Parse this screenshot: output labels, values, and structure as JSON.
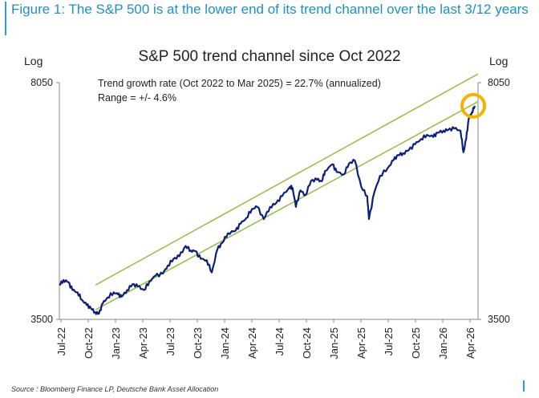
{
  "figure": {
    "title": "Figure 1: The S&P 500 is at the lower end of its trend channel over the last 3/12 years",
    "source": "Source : Bloomberg Finance LP, Deutsche Bank Asset Allocation"
  },
  "colors": {
    "figure_title": "#1f8fc7",
    "series_line": "#0d1f7a",
    "channel": "#9bbf4a",
    "highlight": "#f2b400",
    "axis": "#888888"
  },
  "chart_data": {
    "type": "line",
    "title": "S&P 500 trend channel since Oct 2022",
    "y_scale": "log",
    "ylim": [
      3500,
      8050
    ],
    "y_ticks": [
      3500,
      8050
    ],
    "y_unit_left": "Log",
    "y_unit_right": "Log",
    "x_tick_labels": [
      "Jul-22",
      "Oct-22",
      "Jan-23",
      "Apr-23",
      "Jul-23",
      "Oct-23",
      "Jan-24",
      "Apr-24",
      "Jul-24",
      "Oct-24",
      "Jan-25",
      "Apr-25",
      "Jul-25",
      "Oct-25",
      "Jan-26",
      "Apr-26"
    ],
    "xlim": [
      "2022-06-01",
      "2026-04-10"
    ],
    "annotations": [
      "Trend growth rate (Oct 2022 to Mar 2025) = 22.7% (annualized)",
      "Range = +/- 4.6%"
    ],
    "trend_growth_rate_annualized_pct": 22.7,
    "range_pct": 4.6,
    "channel_lines": [
      {
        "x": [
          "2022-10-01",
          "2026-04-10"
        ],
        "y": [
          3950,
          8300
        ]
      },
      {
        "x": [
          "2022-10-01",
          "2026-04-10"
        ],
        "y": [
          3620,
          7530
        ]
      }
    ],
    "highlight_point": {
      "x": "2026-03-25",
      "y": 7420
    },
    "series": [
      {
        "x": [
          "2022-06-01",
          "2022-06-15",
          "2022-07-01",
          "2022-07-15",
          "2022-08-01",
          "2022-08-16",
          "2022-09-01",
          "2022-09-15",
          "2022-09-30",
          "2022-10-12",
          "2022-10-25",
          "2022-11-10",
          "2022-12-01",
          "2022-12-15",
          "2022-12-28",
          "2023-01-15",
          "2023-02-02",
          "2023-02-20",
          "2023-03-13",
          "2023-03-31",
          "2023-04-20",
          "2023-05-15",
          "2023-06-01",
          "2023-06-20",
          "2023-07-10",
          "2023-07-31",
          "2023-08-18",
          "2023-09-01",
          "2023-09-20",
          "2023-10-10",
          "2023-10-27",
          "2023-11-15",
          "2023-12-01",
          "2023-12-20",
          "2024-01-15",
          "2024-02-01",
          "2024-02-20",
          "2024-03-10",
          "2024-03-28",
          "2024-04-19",
          "2024-05-10",
          "2024-05-31",
          "2024-06-20",
          "2024-07-16",
          "2024-07-25",
          "2024-08-05",
          "2024-08-20",
          "2024-09-06",
          "2024-09-25",
          "2024-10-15",
          "2024-10-31",
          "2024-11-11",
          "2024-12-06",
          "2024-12-20",
          "2025-01-13",
          "2025-01-31",
          "2025-02-19",
          "2025-03-13",
          "2025-04-02",
          "2025-04-08",
          "2025-04-25",
          "2025-05-15",
          "2025-06-10",
          "2025-06-30",
          "2025-07-15",
          "2025-08-01",
          "2025-08-20",
          "2025-09-10",
          "2025-09-30",
          "2025-10-20",
          "2025-11-10",
          "2025-11-25",
          "2025-12-15",
          "2025-12-31",
          "2026-01-20",
          "2026-02-10",
          "2026-02-20",
          "2026-03-01",
          "2026-03-10",
          "2026-03-20",
          "2026-03-30"
        ],
        "y": [
          3950,
          4020,
          3990,
          3880,
          3850,
          3750,
          3680,
          3640,
          3590,
          3570,
          3700,
          3780,
          3850,
          3820,
          3790,
          3880,
          3960,
          3930,
          3880,
          4000,
          4080,
          4110,
          4230,
          4330,
          4370,
          4530,
          4460,
          4450,
          4330,
          4310,
          4130,
          4480,
          4580,
          4740,
          4780,
          4900,
          5000,
          5160,
          5200,
          4980,
          5200,
          5270,
          5400,
          5580,
          5560,
          5200,
          5510,
          5420,
          5700,
          5720,
          5690,
          5900,
          6040,
          5880,
          5830,
          6060,
          6120,
          5580,
          5400,
          4980,
          5450,
          5800,
          5960,
          6130,
          6240,
          6280,
          6350,
          6480,
          6600,
          6700,
          6650,
          6750,
          6800,
          6820,
          6850,
          6800,
          6300,
          6600,
          7100,
          7250,
          7420
        ]
      }
    ]
  }
}
